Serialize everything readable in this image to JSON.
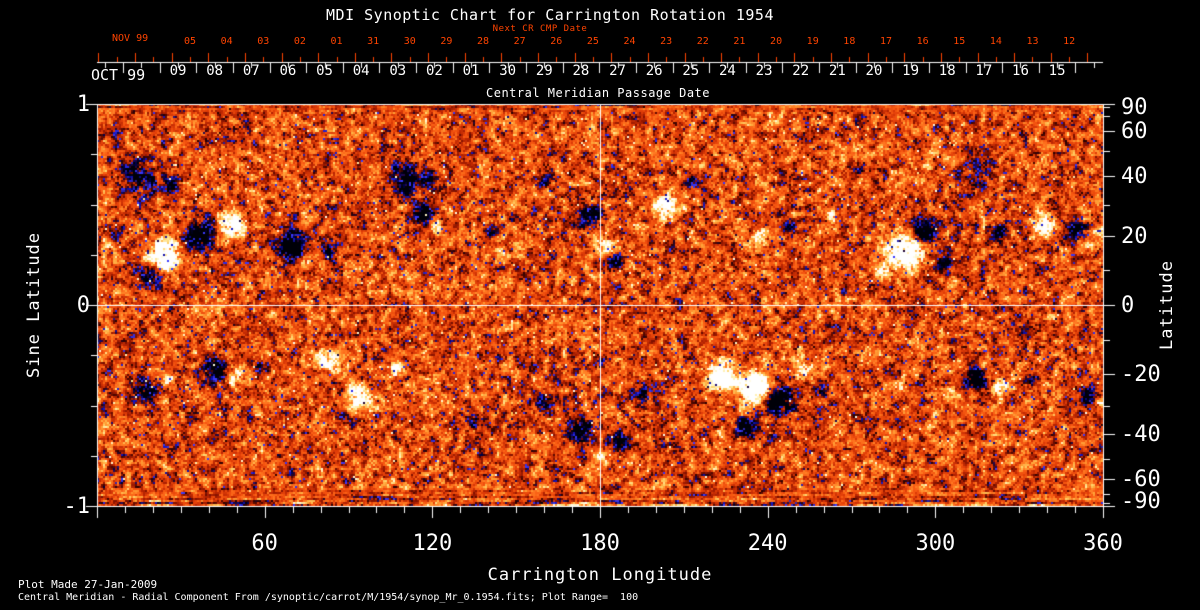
{
  "title": "MDI Synoptic Chart for Carrington Rotation 1954",
  "top_axis": {
    "next_cr_label": "Next CR CMP Date",
    "cmp_label": "Central Meridian Passage Date",
    "next_cr_month": "NOV 99",
    "cmp_month": "OCT 99",
    "next_cr_days": [
      "05",
      "04",
      "03",
      "02",
      "01",
      "31",
      "30",
      "29",
      "28",
      "27",
      "26",
      "25",
      "24",
      "23",
      "22",
      "21",
      "20",
      "19",
      "18",
      "17",
      "16",
      "15",
      "14",
      "13",
      "12"
    ],
    "cmp_days": [
      "09",
      "08",
      "07",
      "06",
      "05",
      "04",
      "03",
      "02",
      "01",
      "30",
      "29",
      "28",
      "27",
      "26",
      "25",
      "24",
      "23",
      "22",
      "21",
      "20",
      "19",
      "18",
      "17",
      "16",
      "15"
    ]
  },
  "x_axis": {
    "label": "Carrington Longitude",
    "range": [
      0,
      360
    ],
    "major_ticks": [
      60,
      120,
      180,
      240,
      300,
      360
    ],
    "minor_tick_step": 10
  },
  "y_axis_left": {
    "label": "Sine Latitude",
    "range": [
      -1,
      1
    ],
    "major_ticks": [
      "1",
      "0",
      "-1"
    ],
    "major_tick_values": [
      1,
      0,
      -1
    ],
    "minor_tick_step": 0.25
  },
  "y_axis_right": {
    "label": "Latitude",
    "major_ticks": [
      "90",
      "60",
      "40",
      "20",
      "0",
      "-20",
      "-40",
      "-60",
      "-90"
    ],
    "major_tick_values": [
      90,
      60,
      40,
      20,
      0,
      -20,
      -40,
      -60,
      -90
    ],
    "minor_tick_values": [
      80,
      70,
      50,
      30,
      10,
      -10,
      -30,
      -50,
      -70,
      -80
    ]
  },
  "footer": {
    "line1": "Plot Made 27-Jan-2009",
    "line2": "Central Meridian - Radial Component From /synoptic/carrot/M/1954/synop_Mr_0.1954.fits; Plot Range=  100"
  },
  "colors": {
    "background": "#000000",
    "axis": "#ffffff",
    "date_red": "#ff4400",
    "magnetogram_positive": "#ffffff",
    "magnetogram_negative": "#1515c8",
    "magnetogram_quiet": "#e84a10"
  },
  "chart_data": {
    "type": "heatmap",
    "title": "MDI Synoptic Chart for Carrington Rotation 1954",
    "xlabel": "Carrington Longitude",
    "x_range": [
      0,
      360
    ],
    "ylabel": "Sine Latitude",
    "y_range": [
      -1,
      1
    ],
    "ylabel_right": "Latitude",
    "right_ticks_deg": [
      90,
      60,
      40,
      20,
      0,
      -20,
      -40,
      -60,
      -90
    ],
    "plot_range": 100,
    "crosshair": {
      "longitude": 180,
      "sine_latitude": 0
    },
    "description": "Full-surface solar magnetogram: mottled red-orange quiet Sun, black/blue negative-polarity regions, white/yellow positive-polarity regions in two activity belts; streaky noise at polar edges.",
    "colormap_stops": [
      [
        0.0,
        0,
        0,
        8
      ],
      [
        0.07,
        0,
        0,
        70
      ],
      [
        0.13,
        20,
        20,
        190
      ],
      [
        0.17,
        60,
        60,
        255
      ],
      [
        0.2,
        30,
        10,
        90
      ],
      [
        0.24,
        40,
        0,
        0
      ],
      [
        0.3,
        126,
        16,
        0
      ],
      [
        0.38,
        180,
        35,
        2
      ],
      [
        0.47,
        225,
        62,
        8
      ],
      [
        0.56,
        248,
        90,
        18
      ],
      [
        0.65,
        255,
        122,
        34
      ],
      [
        0.74,
        255,
        168,
        60
      ],
      [
        0.82,
        255,
        214,
        110
      ],
      [
        0.9,
        255,
        244,
        190
      ],
      [
        1.0,
        255,
        255,
        255
      ]
    ],
    "active_regions_format": "[carrington_longitude_deg, sine_latitude, radius_px, polarity(+1 pos/white, -1 neg/black), strength]",
    "active_regions": [
      [
        14,
        0.65,
        18,
        -1,
        0.55
      ],
      [
        26,
        0.6,
        12,
        -1,
        0.45
      ],
      [
        48,
        0.4,
        14,
        1,
        0.9
      ],
      [
        37,
        0.35,
        16,
        -1,
        0.9
      ],
      [
        24,
        0.25,
        18,
        1,
        0.95
      ],
      [
        19,
        0.15,
        12,
        -1,
        0.6
      ],
      [
        6,
        0.35,
        8,
        -1,
        0.4
      ],
      [
        4,
        0.3,
        6,
        1,
        0.35
      ],
      [
        69,
        0.3,
        16,
        -1,
        0.85
      ],
      [
        74,
        0.22,
        9,
        1,
        0.5
      ],
      [
        83,
        0.27,
        10,
        -1,
        0.6
      ],
      [
        110,
        0.6,
        14,
        -1,
        0.65
      ],
      [
        108,
        0.67,
        12,
        -1,
        0.4
      ],
      [
        118,
        0.63,
        10,
        -1,
        0.4
      ],
      [
        116,
        0.45,
        12,
        -1,
        0.8
      ],
      [
        121,
        0.4,
        9,
        1,
        0.5
      ],
      [
        141,
        0.37,
        8,
        -1,
        0.4
      ],
      [
        144,
        0.27,
        7,
        1,
        0.4
      ],
      [
        160,
        0.62,
        8,
        -1,
        0.35
      ],
      [
        176,
        0.45,
        12,
        -1,
        0.7
      ],
      [
        182,
        0.3,
        10,
        1,
        0.6
      ],
      [
        185,
        0.22,
        10,
        -1,
        0.6
      ],
      [
        203,
        0.5,
        14,
        1,
        0.7
      ],
      [
        212,
        0.62,
        10,
        -1,
        0.45
      ],
      [
        237,
        0.35,
        10,
        1,
        0.5
      ],
      [
        248,
        0.4,
        8,
        -1,
        0.4
      ],
      [
        262,
        0.45,
        8,
        1,
        0.4
      ],
      [
        272,
        0.68,
        10,
        -1,
        0.35
      ],
      [
        289,
        0.27,
        20,
        1,
        0.95
      ],
      [
        296,
        0.37,
        14,
        -1,
        0.85
      ],
      [
        303,
        0.22,
        10,
        -1,
        0.6
      ],
      [
        280,
        0.17,
        10,
        1,
        0.6
      ],
      [
        316,
        0.67,
        18,
        -1,
        0.35
      ],
      [
        323,
        0.37,
        10,
        -1,
        0.5
      ],
      [
        339,
        0.4,
        12,
        1,
        0.7
      ],
      [
        350,
        0.37,
        10,
        -1,
        0.6
      ],
      [
        355,
        0.3,
        8,
        1,
        0.5
      ],
      [
        359,
        0.37,
        8,
        1,
        0.5
      ],
      [
        17,
        -0.42,
        14,
        -1,
        0.6
      ],
      [
        26,
        -0.37,
        8,
        1,
        0.4
      ],
      [
        42,
        -0.32,
        14,
        -1,
        0.8
      ],
      [
        49,
        -0.35,
        10,
        1,
        0.6
      ],
      [
        57,
        -0.3,
        8,
        -1,
        0.5
      ],
      [
        83,
        -0.27,
        12,
        1,
        0.6
      ],
      [
        94,
        -0.45,
        14,
        1,
        0.7
      ],
      [
        89,
        -0.57,
        8,
        -1,
        0.4
      ],
      [
        107,
        -0.32,
        8,
        1,
        0.5
      ],
      [
        135,
        -0.57,
        10,
        -1,
        0.4
      ],
      [
        160,
        -0.47,
        10,
        -1,
        0.5
      ],
      [
        173,
        -0.62,
        14,
        -1,
        0.7
      ],
      [
        187,
        -0.67,
        12,
        -1,
        0.6
      ],
      [
        180,
        -0.75,
        8,
        1,
        0.4
      ],
      [
        194,
        -0.45,
        10,
        -1,
        0.5
      ],
      [
        223,
        -0.35,
        16,
        1,
        0.9
      ],
      [
        235,
        -0.4,
        18,
        1,
        0.95
      ],
      [
        244,
        -0.47,
        16,
        -1,
        0.9
      ],
      [
        232,
        -0.6,
        12,
        -1,
        0.7
      ],
      [
        252,
        -0.32,
        10,
        1,
        0.6
      ],
      [
        259,
        -0.42,
        8,
        -1,
        0.5
      ],
      [
        287,
        -0.4,
        8,
        1,
        0.4
      ],
      [
        314,
        -0.37,
        12,
        -1,
        0.7
      ],
      [
        323,
        -0.4,
        10,
        1,
        0.6
      ],
      [
        334,
        -0.37,
        8,
        -1,
        0.5
      ],
      [
        354,
        -0.45,
        10,
        -1,
        0.6
      ],
      [
        358,
        -0.48,
        6,
        1,
        0.4
      ]
    ]
  }
}
